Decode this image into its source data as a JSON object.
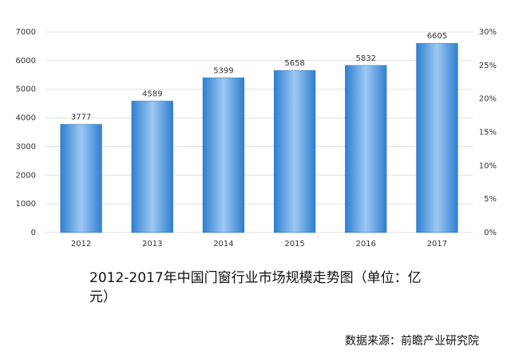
{
  "chart_data": {
    "type": "bar",
    "title": "2012-2017年中国门窗行业市场规模走势图（单位：亿元）",
    "source": "数据来源：前瞻产业研究院",
    "categories": [
      "2012",
      "2013",
      "2014",
      "2015",
      "2016",
      "2017"
    ],
    "values": [
      3777,
      4589,
      5399,
      5658,
      5832,
      6605
    ],
    "color": "#2f7fd0",
    "ylim": [
      0,
      7000
    ],
    "yticks": [
      0,
      1000,
      2000,
      3000,
      4000,
      5000,
      6000,
      7000
    ],
    "y2lim": [
      0,
      30
    ],
    "y2ticks": [
      {
        "value": 0,
        "label": "0%"
      },
      {
        "value": 5,
        "label": "5%"
      },
      {
        "value": 10,
        "label": "10%"
      },
      {
        "value": 15,
        "label": "15%"
      },
      {
        "value": 20,
        "label": "20%"
      },
      {
        "value": 25,
        "label": "25%"
      },
      {
        "value": 30,
        "label": "30%"
      }
    ],
    "grid": true
  }
}
